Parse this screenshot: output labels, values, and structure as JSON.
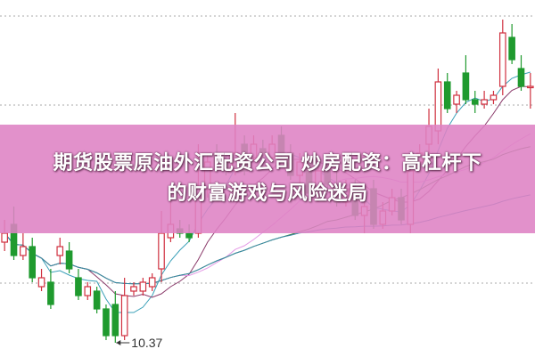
{
  "title_lines": [
    "期货股票原油外汇配资公司 炒房配资：高杠杆下",
    "的财富游戏与风险迷局"
  ],
  "chart_data": {
    "type": "candlestick",
    "title": "",
    "grid": "dotted horizontal",
    "annotations": [
      {
        "text": "10.37",
        "type": "low-price-marker"
      }
    ],
    "colors": {
      "up": "#d0303f",
      "down": "#1f9a2e",
      "ma": [
        "#3aa0b8",
        "#8a3a6a",
        "#e59ae6",
        "#3a7a3a",
        "#3a8aa8"
      ],
      "banner": "#de82c4"
    },
    "candles": [
      [
        11.5,
        11.75,
        11.4,
        11.6
      ],
      [
        11.7,
        11.9,
        11.3,
        11.35
      ],
      [
        11.35,
        11.6,
        11.3,
        11.45
      ],
      [
        11.45,
        11.55,
        11.05,
        11.1
      ],
      [
        11.0,
        11.2,
        10.95,
        11.1
      ],
      [
        11.05,
        11.2,
        10.75,
        10.8
      ],
      [
        11.35,
        11.55,
        11.25,
        11.45
      ],
      [
        11.4,
        11.5,
        11.15,
        11.2
      ],
      [
        11.1,
        11.2,
        10.85,
        10.9
      ],
      [
        10.9,
        11.05,
        10.85,
        11.0
      ],
      [
        10.95,
        11.0,
        10.7,
        10.75
      ],
      [
        10.75,
        10.8,
        10.4,
        10.45
      ],
      [
        10.8,
        10.95,
        10.37,
        10.45
      ],
      [
        10.45,
        11.1,
        10.4,
        10.9
      ],
      [
        10.95,
        11.05,
        10.9,
        11.0
      ],
      [
        10.95,
        11.1,
        10.9,
        11.05
      ],
      [
        11.0,
        11.15,
        10.95,
        11.1
      ],
      [
        11.2,
        11.85,
        11.05,
        11.6
      ],
      [
        11.55,
        12.0,
        11.5,
        11.7
      ],
      [
        11.65,
        11.75,
        11.55,
        11.6
      ],
      [
        11.6,
        11.7,
        11.5,
        11.55
      ],
      [
        11.6,
        12.6,
        11.55,
        12.1
      ],
      [
        12.1,
        12.5,
        12.0,
        12.4
      ],
      [
        12.5,
        12.6,
        12.3,
        12.35
      ],
      [
        12.4,
        12.5,
        12.25,
        12.3
      ],
      [
        12.3,
        12.95,
        12.25,
        12.5
      ],
      [
        12.6,
        12.7,
        12.25,
        12.3
      ],
      [
        12.45,
        12.7,
        12.4,
        12.6
      ],
      [
        12.55,
        12.65,
        12.4,
        12.5
      ],
      [
        12.45,
        12.7,
        12.4,
        12.6
      ],
      [
        12.7,
        12.8,
        12.45,
        12.5
      ],
      [
        12.5,
        12.6,
        12.2,
        12.25
      ],
      [
        12.25,
        12.5,
        12.15,
        12.4
      ],
      [
        12.4,
        12.45,
        12.0,
        12.05
      ],
      [
        12.05,
        12.35,
        11.95,
        12.3
      ],
      [
        12.3,
        12.45,
        12.1,
        12.15
      ],
      [
        12.15,
        12.3,
        11.9,
        11.95
      ],
      [
        11.95,
        12.2,
        11.9,
        12.1
      ],
      [
        12.1,
        12.2,
        11.75,
        11.8
      ],
      [
        11.8,
        12.0,
        11.6,
        11.9
      ],
      [
        12.1,
        12.2,
        11.65,
        11.7
      ],
      [
        11.7,
        11.95,
        11.65,
        11.85
      ],
      [
        11.85,
        12.1,
        11.8,
        12.0
      ],
      [
        12.0,
        12.1,
        11.7,
        11.75
      ],
      [
        11.7,
        12.35,
        11.6,
        12.3
      ],
      [
        12.4,
        12.6,
        12.3,
        12.5
      ],
      [
        12.6,
        13.0,
        12.5,
        12.8
      ],
      [
        12.75,
        13.45,
        12.6,
        13.3
      ],
      [
        13.3,
        13.4,
        12.95,
        13.0
      ],
      [
        13.05,
        13.2,
        12.95,
        13.15
      ],
      [
        13.4,
        13.6,
        13.05,
        13.1
      ],
      [
        13.1,
        13.2,
        12.95,
        13.05
      ],
      [
        13.05,
        13.2,
        13.0,
        13.1
      ],
      [
        13.1,
        13.2,
        13.05,
        13.15
      ],
      [
        13.25,
        14.0,
        13.15,
        13.85
      ],
      [
        13.8,
        13.95,
        13.5,
        13.55
      ],
      [
        13.45,
        13.6,
        13.2,
        13.25
      ],
      [
        13.25,
        13.4,
        13.0,
        13.25
      ]
    ],
    "moving_averages": [
      5,
      10,
      20,
      30,
      60
    ],
    "ylim": [
      10.2,
      14.1
    ]
  }
}
